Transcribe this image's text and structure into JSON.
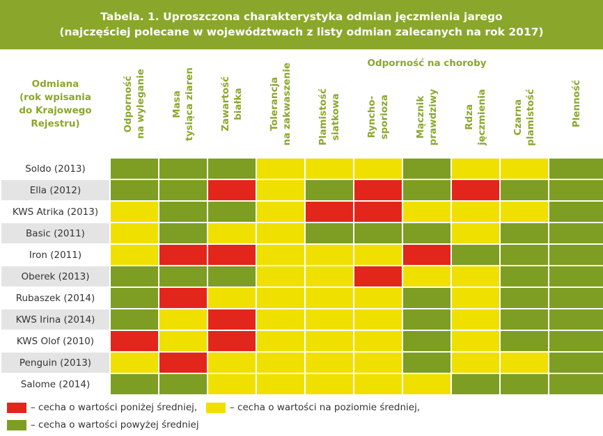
{
  "title": {
    "line1": "Tabela. 1. Uproszczona charakterystyka odmian jęczmienia jarego",
    "line2": "(najczęściej polecane w województwach z listy odmian zalecanych na rok 2017)"
  },
  "header": {
    "variety": "Odmiana\n(rok wpisania\ndo Krajowego\nRejestru)",
    "group_label": "Odporność na choroby",
    "columns": [
      "Odporność\nna wyleganie",
      "Masa\ntysiąca ziaren",
      "Zawartość\nbiałka",
      "Tolerancja\nna zakwaszenie",
      "Plamistość\nsiatkowa",
      "Ryncho-\nsporioza",
      "Mącznik\nprawdziwy",
      "Rdza\njęczmienia",
      "Czarna\nplamistość",
      "Plenność"
    ]
  },
  "rows": [
    {
      "name": "Soldo (2013)",
      "ratings": [
        "g",
        "g",
        "g",
        "y",
        "y",
        "y",
        "g",
        "y",
        "y",
        "g"
      ]
    },
    {
      "name": "Ella (2012)",
      "ratings": [
        "g",
        "g",
        "r",
        "y",
        "g",
        "r",
        "g",
        "r",
        "g",
        "g"
      ]
    },
    {
      "name": "KWS Atrika (2013)",
      "ratings": [
        "y",
        "g",
        "g",
        "y",
        "r",
        "r",
        "y",
        "y",
        "y",
        "g"
      ]
    },
    {
      "name": "Basic (2011)",
      "ratings": [
        "y",
        "g",
        "y",
        "y",
        "g",
        "g",
        "g",
        "y",
        "g",
        "g"
      ]
    },
    {
      "name": "Iron (2011)",
      "ratings": [
        "y",
        "r",
        "r",
        "y",
        "y",
        "y",
        "r",
        "g",
        "g",
        "g"
      ]
    },
    {
      "name": "Oberek (2013)",
      "ratings": [
        "g",
        "g",
        "g",
        "y",
        "y",
        "r",
        "y",
        "y",
        "g",
        "g"
      ]
    },
    {
      "name": "Rubaszek (2014)",
      "ratings": [
        "g",
        "r",
        "y",
        "y",
        "y",
        "y",
        "g",
        "y",
        "g",
        "g"
      ]
    },
    {
      "name": "KWS Irina (2014)",
      "ratings": [
        "g",
        "y",
        "r",
        "y",
        "y",
        "y",
        "g",
        "y",
        "g",
        "g"
      ]
    },
    {
      "name": "KWS Olof (2010)",
      "ratings": [
        "r",
        "y",
        "r",
        "y",
        "y",
        "y",
        "g",
        "y",
        "g",
        "g"
      ]
    },
    {
      "name": "Penguin (2013)",
      "ratings": [
        "y",
        "r",
        "y",
        "y",
        "y",
        "y",
        "g",
        "y",
        "y",
        "g"
      ]
    },
    {
      "name": "Salome (2014)",
      "ratings": [
        "g",
        "g",
        "y",
        "y",
        "y",
        "y",
        "y",
        "g",
        "g",
        "g"
      ]
    }
  ],
  "legend": {
    "red": "– cecha o wartości poniżej średniej,",
    "yellow": "– cecha o wartości na poziomie średniej,",
    "green": "– cecha o wartości powyżej średniej"
  },
  "colors": {
    "header_green": "#8aa72b",
    "green": "#7d9e22",
    "yellow": "#f0e000",
    "red": "#e2261c"
  }
}
